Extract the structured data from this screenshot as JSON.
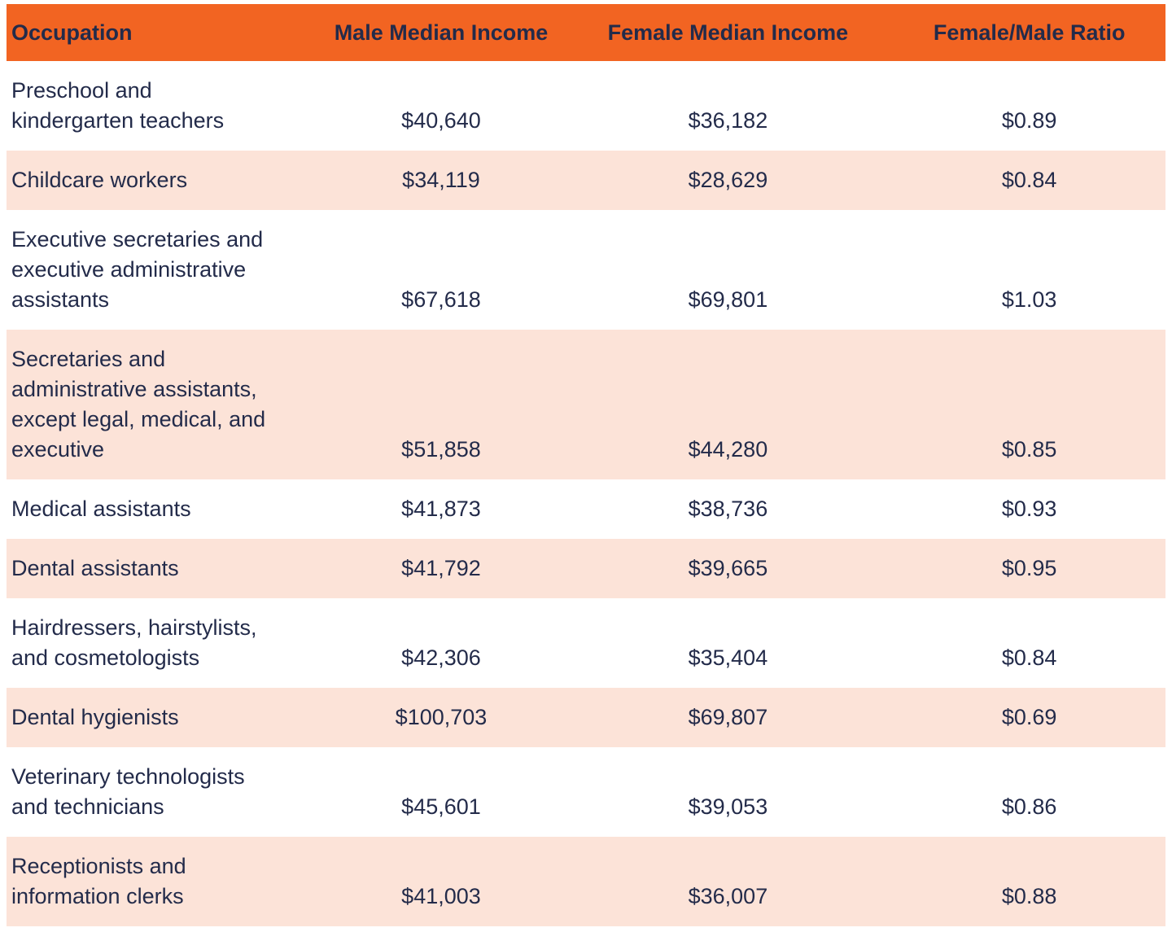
{
  "colors": {
    "header_bg": "#F26422",
    "stripe_bg": "#FCE3D8",
    "text": "#232B4A"
  },
  "header": {
    "occupation": "Occupation",
    "male": "Male Median Income",
    "female": "Female Median Income",
    "ratio": "Female/Male Ratio"
  },
  "rows": [
    {
      "occupation": "Preschool and\nkindergarten teachers",
      "male": "$40,640",
      "female": "$36,182",
      "ratio": "$0.89"
    },
    {
      "occupation": "Childcare workers",
      "male": "$34,119",
      "female": "$28,629",
      "ratio": "$0.84"
    },
    {
      "occupation": "Executive secretaries and\nexecutive administrative\nassistants",
      "male": "$67,618",
      "female": "$69,801",
      "ratio": "$1.03"
    },
    {
      "occupation": "Secretaries and\nadministrative assistants,\nexcept legal, medical, and\nexecutive",
      "male": "$51,858",
      "female": "$44,280",
      "ratio": "$0.85"
    },
    {
      "occupation": "Medical assistants",
      "male": "$41,873",
      "female": "$38,736",
      "ratio": "$0.93"
    },
    {
      "occupation": "Dental assistants",
      "male": "$41,792",
      "female": "$39,665",
      "ratio": "$0.95"
    },
    {
      "occupation": "Hairdressers, hairstylists,\nand cosmetologists",
      "male": "$42,306",
      "female": "$35,404",
      "ratio": "$0.84"
    },
    {
      "occupation": "Dental hygienists",
      "male": "$100,703",
      "female": "$69,807",
      "ratio": "$0.69"
    },
    {
      "occupation": "Veterinary technologists\nand technicians",
      "male": "$45,601",
      "female": "$39,053",
      "ratio": "$0.86"
    },
    {
      "occupation": "Receptionists and\ninformation clerks",
      "male": "$41,003",
      "female": "$36,007",
      "ratio": "$0.88"
    }
  ],
  "chart_data": {
    "type": "table",
    "title": "",
    "columns": [
      "Occupation",
      "Male Median Income",
      "Female Median Income",
      "Female/Male Ratio"
    ],
    "rows": [
      [
        "Preschool and kindergarten teachers",
        "$40,640",
        "$36,182",
        "$0.89"
      ],
      [
        "Childcare workers",
        "$34,119",
        "$28,629",
        "$0.84"
      ],
      [
        "Executive secretaries and executive administrative assistants",
        "$67,618",
        "$69,801",
        "$1.03"
      ],
      [
        "Secretaries and administrative assistants, except legal, medical, and executive",
        "$51,858",
        "$44,280",
        "$0.85"
      ],
      [
        "Medical assistants",
        "$41,873",
        "$38,736",
        "$0.93"
      ],
      [
        "Dental assistants",
        "$41,792",
        "$39,665",
        "$0.95"
      ],
      [
        "Hairdressers, hairstylists, and cosmetologists",
        "$42,306",
        "$35,404",
        "$0.84"
      ],
      [
        "Dental hygienists",
        "$100,703",
        "$69,807",
        "$0.69"
      ],
      [
        "Veterinary technologists and technicians",
        "$45,601",
        "$39,053",
        "$0.86"
      ],
      [
        "Receptionists and information clerks",
        "$41,003",
        "$36,007",
        "$0.88"
      ]
    ],
    "layout_hints": {
      "header_style": "orange background, bold dark-navy text",
      "row_striping": "alternating white and light peach starting white",
      "value_alignment": "numeric columns centered, occupation left-aligned, cells bottom-aligned"
    }
  }
}
